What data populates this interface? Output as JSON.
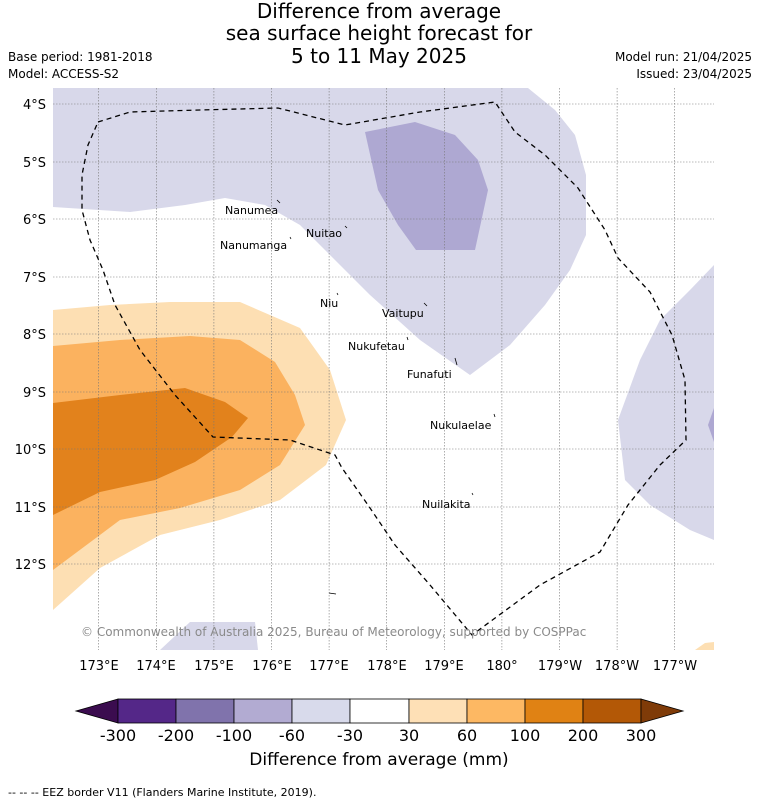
{
  "header": {
    "title_lines": [
      "Difference from average",
      "sea surface height forecast for",
      "5 to 11 May 2025"
    ],
    "base_period": "Base period: 1981-2018",
    "model": "Model: ACCESS-S2",
    "model_run": "Model run: 21/04/2025",
    "issued": "Issued: 23/04/2025"
  },
  "map": {
    "lat_labels": [
      "4°S",
      "5°S",
      "6°S",
      "7°S",
      "8°S",
      "9°S",
      "10°S",
      "11°S",
      "12°S"
    ],
    "lon_labels": [
      "173°E",
      "174°E",
      "175°E",
      "176°E",
      "177°E",
      "178°E",
      "179°E",
      "180°",
      "179°W",
      "178°W",
      "177°W"
    ],
    "places": [
      "Nanumea",
      "Nuitao",
      "Nanumanga",
      "Niu",
      "Vaitupu",
      "Nukufetau",
      "Funafuti",
      "Nukulaelae",
      "Nuilakita"
    ],
    "copyright": "© Commonwealth of Australia 2025, Bureau of Meteorology, supported by COSPPac",
    "colors": {
      "neg_30_60": "#d8d8ea",
      "neg_60_100": "#aea8d2",
      "pos_30_60": "#fddfb3",
      "pos_60_100": "#fbb25f",
      "pos_100_200": "#e2821c",
      "eez_line": "#000000"
    }
  },
  "colorbar": {
    "labels": [
      "-300",
      "-200",
      "-100",
      "-60",
      "-30",
      "30",
      "60",
      "100",
      "200",
      "300"
    ],
    "colors": [
      "#3b0c4f",
      "#542788",
      "#8073ac",
      "#b2abd2",
      "#d8daeb",
      "#ffffff",
      "#fee0b6",
      "#fdb863",
      "#e08214",
      "#b35806",
      "#7f3b08"
    ],
    "title": "Difference from average (mm)"
  },
  "footer": {
    "legend": "--  --  -- EEZ border V11 (Flanders Marine Institute, 2019)."
  }
}
